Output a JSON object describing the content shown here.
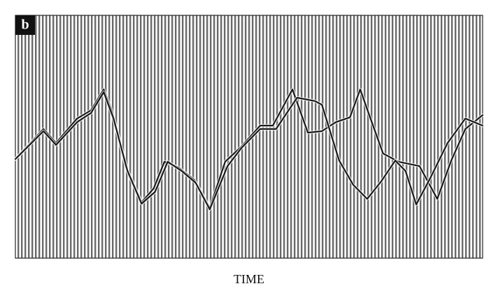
{
  "chart_data": {
    "type": "line",
    "panel_label": "b",
    "xlabel": "TIME",
    "xlim": [
      0,
      100
    ],
    "ylim": [
      0,
      100
    ],
    "series": [
      {
        "color": "#1a1a1a",
        "x": [
          0,
          6.0,
          8.7,
          13.2,
          16.2,
          18.9,
          20.7,
          23.7,
          27.0,
          29.6,
          31.9,
          34.9,
          38.3,
          41.6,
          44.9,
          48.4,
          52.4,
          55.1,
          59.3,
          62.6,
          65.6,
          68.6,
          71.6,
          73.8,
          76.0,
          78.7,
          82.0,
          86.5,
          90.3,
          93.3,
          96.3,
          100
        ],
        "values": [
          40.8,
          53.2,
          47.4,
          57.5,
          60.9,
          69.5,
          60.3,
          37.4,
          23.0,
          28.7,
          39.7,
          37.4,
          32.2,
          20.7,
          39.7,
          46.0,
          54.6,
          54.6,
          69.5,
          51.7,
          52.3,
          56.0,
          58.0,
          69.5,
          57.5,
          43.1,
          39.7,
          37.9,
          24.4,
          40.2,
          53.2,
          58.9
        ]
      },
      {
        "color": "#1a1a1a",
        "x": [
          0,
          6.0,
          8.7,
          13.2,
          16.2,
          18.9,
          21.0,
          24.0,
          27.0,
          29.9,
          32.6,
          35.6,
          38.6,
          41.6,
          45.4,
          48.4,
          52.4,
          55.8,
          60.3,
          64.1,
          65.6,
          69.3,
          72.3,
          75.3,
          78.3,
          81.3,
          83.5,
          85.8,
          88.8,
          92.5,
          96.3,
          100
        ],
        "values": [
          40.8,
          52.3,
          46.6,
          56.0,
          59.8,
          68.4,
          57.5,
          35.9,
          22.4,
          27.3,
          39.7,
          35.9,
          31.0,
          20.1,
          37.9,
          45.4,
          53.2,
          53.2,
          66.1,
          64.7,
          63.2,
          40.2,
          30.2,
          24.4,
          31.6,
          40.2,
          35.9,
          22.1,
          33.0,
          47.4,
          57.5,
          54.6
        ]
      }
    ]
  }
}
